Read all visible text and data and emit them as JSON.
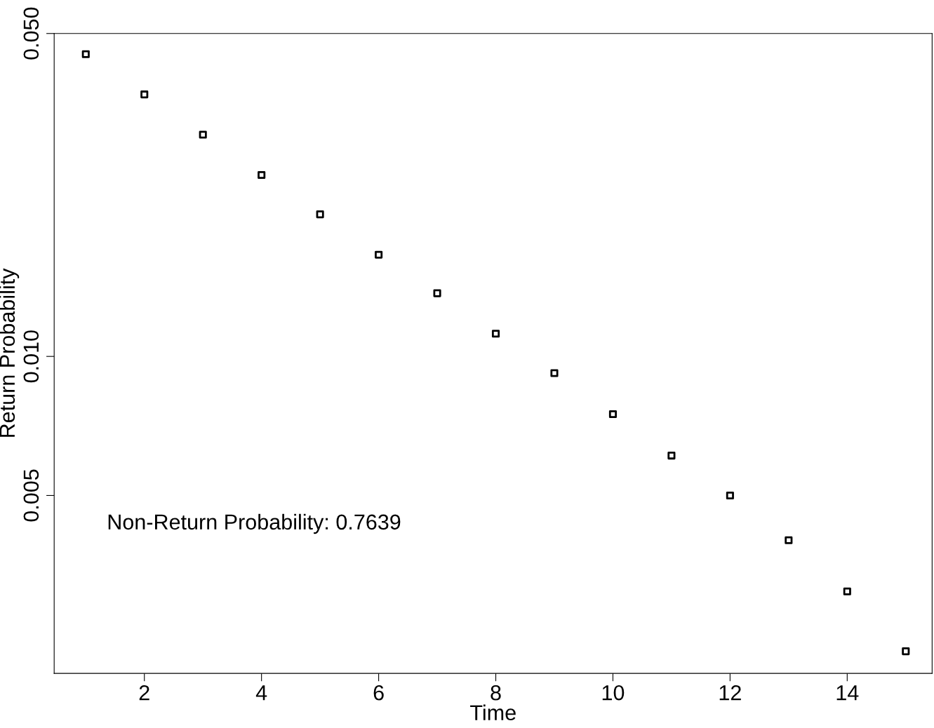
{
  "chart_data": {
    "type": "scatter",
    "xlabel": "Time",
    "ylabel": "Return Probability",
    "x": [
      1,
      2,
      3,
      4,
      5,
      6,
      7,
      8,
      9,
      10,
      11,
      12,
      13,
      14,
      15
    ],
    "values": [
      0.0451,
      0.0369,
      0.0302,
      0.0247,
      0.0203,
      0.0166,
      0.0137,
      0.0112,
      0.0092,
      0.0075,
      0.0061,
      0.005,
      0.004,
      0.0031,
      0.0023
    ],
    "color": "#000000",
    "marker": "square",
    "log": "y",
    "xlim": [
      0.46,
      15.45
    ],
    "xticks": [
      2,
      4,
      6,
      8,
      10,
      12,
      14
    ],
    "ylim": [
      0.00206,
      0.05
    ],
    "yticks": [
      {
        "value": 0.005,
        "label": "0.005"
      },
      {
        "value": 0.01,
        "label": "0.010"
      },
      {
        "value": 0.05,
        "label": "0.050"
      }
    ],
    "grid": false,
    "annotations": [
      "Non-Return Probability: 0.7639"
    ]
  }
}
